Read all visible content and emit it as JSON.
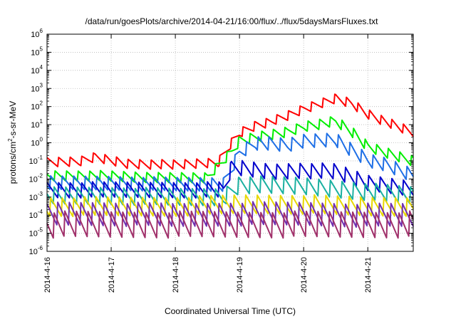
{
  "chart_data": {
    "type": "line",
    "title": "/data/run/goesPlots/archive/2014-04-21/16:00/flux/../flux/5daysMarsFluxes.txt",
    "xlabel": "Coordinated Universal Time (UTC)",
    "ylabel_base": "protons/cm",
    "ylabel_exp": "2",
    "ylabel_rest": "-s-sr-MeV",
    "yscale": "log",
    "ylim": [
      1e-06,
      1000000.0
    ],
    "xlim": [
      "2014-04-16 00:00",
      "2014-04-21 17:00"
    ],
    "grid": true,
    "x_ticks": [
      "2014-4-16",
      "2014-4-17",
      "2014-4-18",
      "2014-4-19",
      "2014-4-20",
      "2014-4-21"
    ],
    "y_ticks": [
      {
        "base": "10",
        "exp": "-6"
      },
      {
        "base": "10",
        "exp": "-5"
      },
      {
        "base": "10",
        "exp": "-4"
      },
      {
        "base": "10",
        "exp": "-3"
      },
      {
        "base": "10",
        "exp": "-2"
      },
      {
        "base": "10",
        "exp": "-1"
      },
      {
        "base": "10",
        "exp": "0"
      },
      {
        "base": "10",
        "exp": "1"
      },
      {
        "base": "10",
        "exp": "2"
      },
      {
        "base": "10",
        "exp": "3"
      },
      {
        "base": "10",
        "exp": "4"
      },
      {
        "base": "10",
        "exp": "5"
      },
      {
        "base": "10",
        "exp": "6"
      }
    ],
    "series": [
      {
        "color": "#ff0000",
        "values": [
          [
            "2014-04-16 00:00",
            0.08
          ],
          [
            "2014-04-16 12:00",
            0.09
          ],
          [
            "2014-04-16 18:00",
            0.16
          ],
          [
            "2014-04-17 06:00",
            0.07
          ],
          [
            "2014-04-18 00:00",
            0.06
          ],
          [
            "2014-04-18 16:00",
            0.08
          ],
          [
            "2014-04-18 21:00",
            1.0
          ],
          [
            "2014-04-19 00:00",
            3.5
          ],
          [
            "2014-04-19 06:00",
            9
          ],
          [
            "2014-04-19 12:00",
            15
          ],
          [
            "2014-04-19 18:00",
            30
          ],
          [
            "2014-04-20 00:00",
            70
          ],
          [
            "2014-04-20 06:00",
            140
          ],
          [
            "2014-04-20 12:00",
            280
          ],
          [
            "2014-04-20 18:00",
            150
          ],
          [
            "2014-04-21 00:00",
            40
          ],
          [
            "2014-04-21 08:00",
            12
          ],
          [
            "2014-04-21 17:00",
            3.5
          ]
        ]
      },
      {
        "color": "#00ee00",
        "values": [
          [
            "2014-04-16 00:00",
            0.015
          ],
          [
            "2014-04-16 18:00",
            0.015
          ],
          [
            "2014-04-17 12:00",
            0.012
          ],
          [
            "2014-04-18 12:00",
            0.012
          ],
          [
            "2014-04-18 21:00",
            0.3
          ],
          [
            "2014-04-19 00:00",
            1.2
          ],
          [
            "2014-04-19 06:00",
            2.0
          ],
          [
            "2014-04-19 18:00",
            4
          ],
          [
            "2014-04-20 00:00",
            8
          ],
          [
            "2014-04-20 12:00",
            15
          ],
          [
            "2014-04-20 18:00",
            4
          ],
          [
            "2014-04-21 00:00",
            0.6
          ],
          [
            "2014-04-21 08:00",
            0.25
          ],
          [
            "2014-04-21 17:00",
            0.1
          ]
        ]
      },
      {
        "color": "#1e6fe6",
        "values": [
          [
            "2014-04-16 00:00",
            0.006
          ],
          [
            "2014-04-17 00:00",
            0.006
          ],
          [
            "2014-04-18 00:00",
            0.005
          ],
          [
            "2014-04-18 18:00",
            0.005
          ],
          [
            "2014-04-19 00:00",
            0.3
          ],
          [
            "2014-04-19 06:00",
            1.0
          ],
          [
            "2014-04-19 18:00",
            0.7
          ],
          [
            "2014-04-20 00:00",
            1.2
          ],
          [
            "2014-04-20 12:00",
            1.5
          ],
          [
            "2014-04-20 18:00",
            0.4
          ],
          [
            "2014-04-21 00:00",
            0.12
          ],
          [
            "2014-04-21 08:00",
            0.05
          ],
          [
            "2014-04-21 17:00",
            0.015
          ]
        ]
      },
      {
        "color": "#0000cc",
        "values": [
          [
            "2014-04-16 00:00",
            0.0025
          ],
          [
            "2014-04-17 00:00",
            0.0025
          ],
          [
            "2014-04-18 00:00",
            0.0025
          ],
          [
            "2014-04-18 18:00",
            0.0025
          ],
          [
            "2014-04-18 21:00",
            0.04
          ],
          [
            "2014-04-19 00:00",
            0.04
          ],
          [
            "2014-04-19 12:00",
            0.025
          ],
          [
            "2014-04-20 00:00",
            0.03
          ],
          [
            "2014-04-20 12:00",
            0.025
          ],
          [
            "2014-04-21 00:00",
            0.006
          ],
          [
            "2014-04-21 17:00",
            0.003
          ]
        ]
      },
      {
        "color": "#1ab0a0",
        "values": [
          [
            "2014-04-16 00:00",
            0.0012
          ],
          [
            "2014-04-17 00:00",
            0.0012
          ],
          [
            "2014-04-18 00:00",
            0.001
          ],
          [
            "2014-04-18 18:00",
            0.001
          ],
          [
            "2014-04-19 00:00",
            0.005
          ],
          [
            "2014-04-20 00:00",
            0.004
          ],
          [
            "2014-04-21 00:00",
            0.002
          ],
          [
            "2014-04-21 17:00",
            0.0012
          ]
        ]
      },
      {
        "color": "#e8d800",
        "values": [
          [
            "2014-04-16 00:00",
            0.0003
          ],
          [
            "2014-04-17 00:00",
            0.0003
          ],
          [
            "2014-04-18 00:00",
            0.0003
          ],
          [
            "2014-04-19 00:00",
            0.0004
          ],
          [
            "2014-04-20 00:00",
            0.0004
          ],
          [
            "2014-04-21 00:00",
            0.0003
          ],
          [
            "2014-04-21 17:00",
            0.0003
          ]
        ]
      },
      {
        "color": "#7030b0",
        "values": [
          [
            "2014-04-16 00:00",
            0.00012
          ],
          [
            "2014-04-17 00:00",
            0.00012
          ],
          [
            "2014-04-18 00:00",
            0.0001
          ],
          [
            "2014-04-19 00:00",
            0.00012
          ],
          [
            "2014-04-20 00:00",
            0.00012
          ],
          [
            "2014-04-21 00:00",
            0.0001
          ],
          [
            "2014-04-21 17:00",
            0.0001
          ]
        ]
      },
      {
        "color": "#a0306a",
        "values": [
          [
            "2014-04-16 00:00",
            3e-05
          ],
          [
            "2014-04-17 00:00",
            3e-05
          ],
          [
            "2014-04-18 00:00",
            3e-05
          ],
          [
            "2014-04-19 00:00",
            3e-05
          ],
          [
            "2014-04-20 00:00",
            3e-05
          ],
          [
            "2014-04-21 00:00",
            3e-05
          ],
          [
            "2014-04-21 17:00",
            3e-05
          ]
        ]
      }
    ]
  }
}
